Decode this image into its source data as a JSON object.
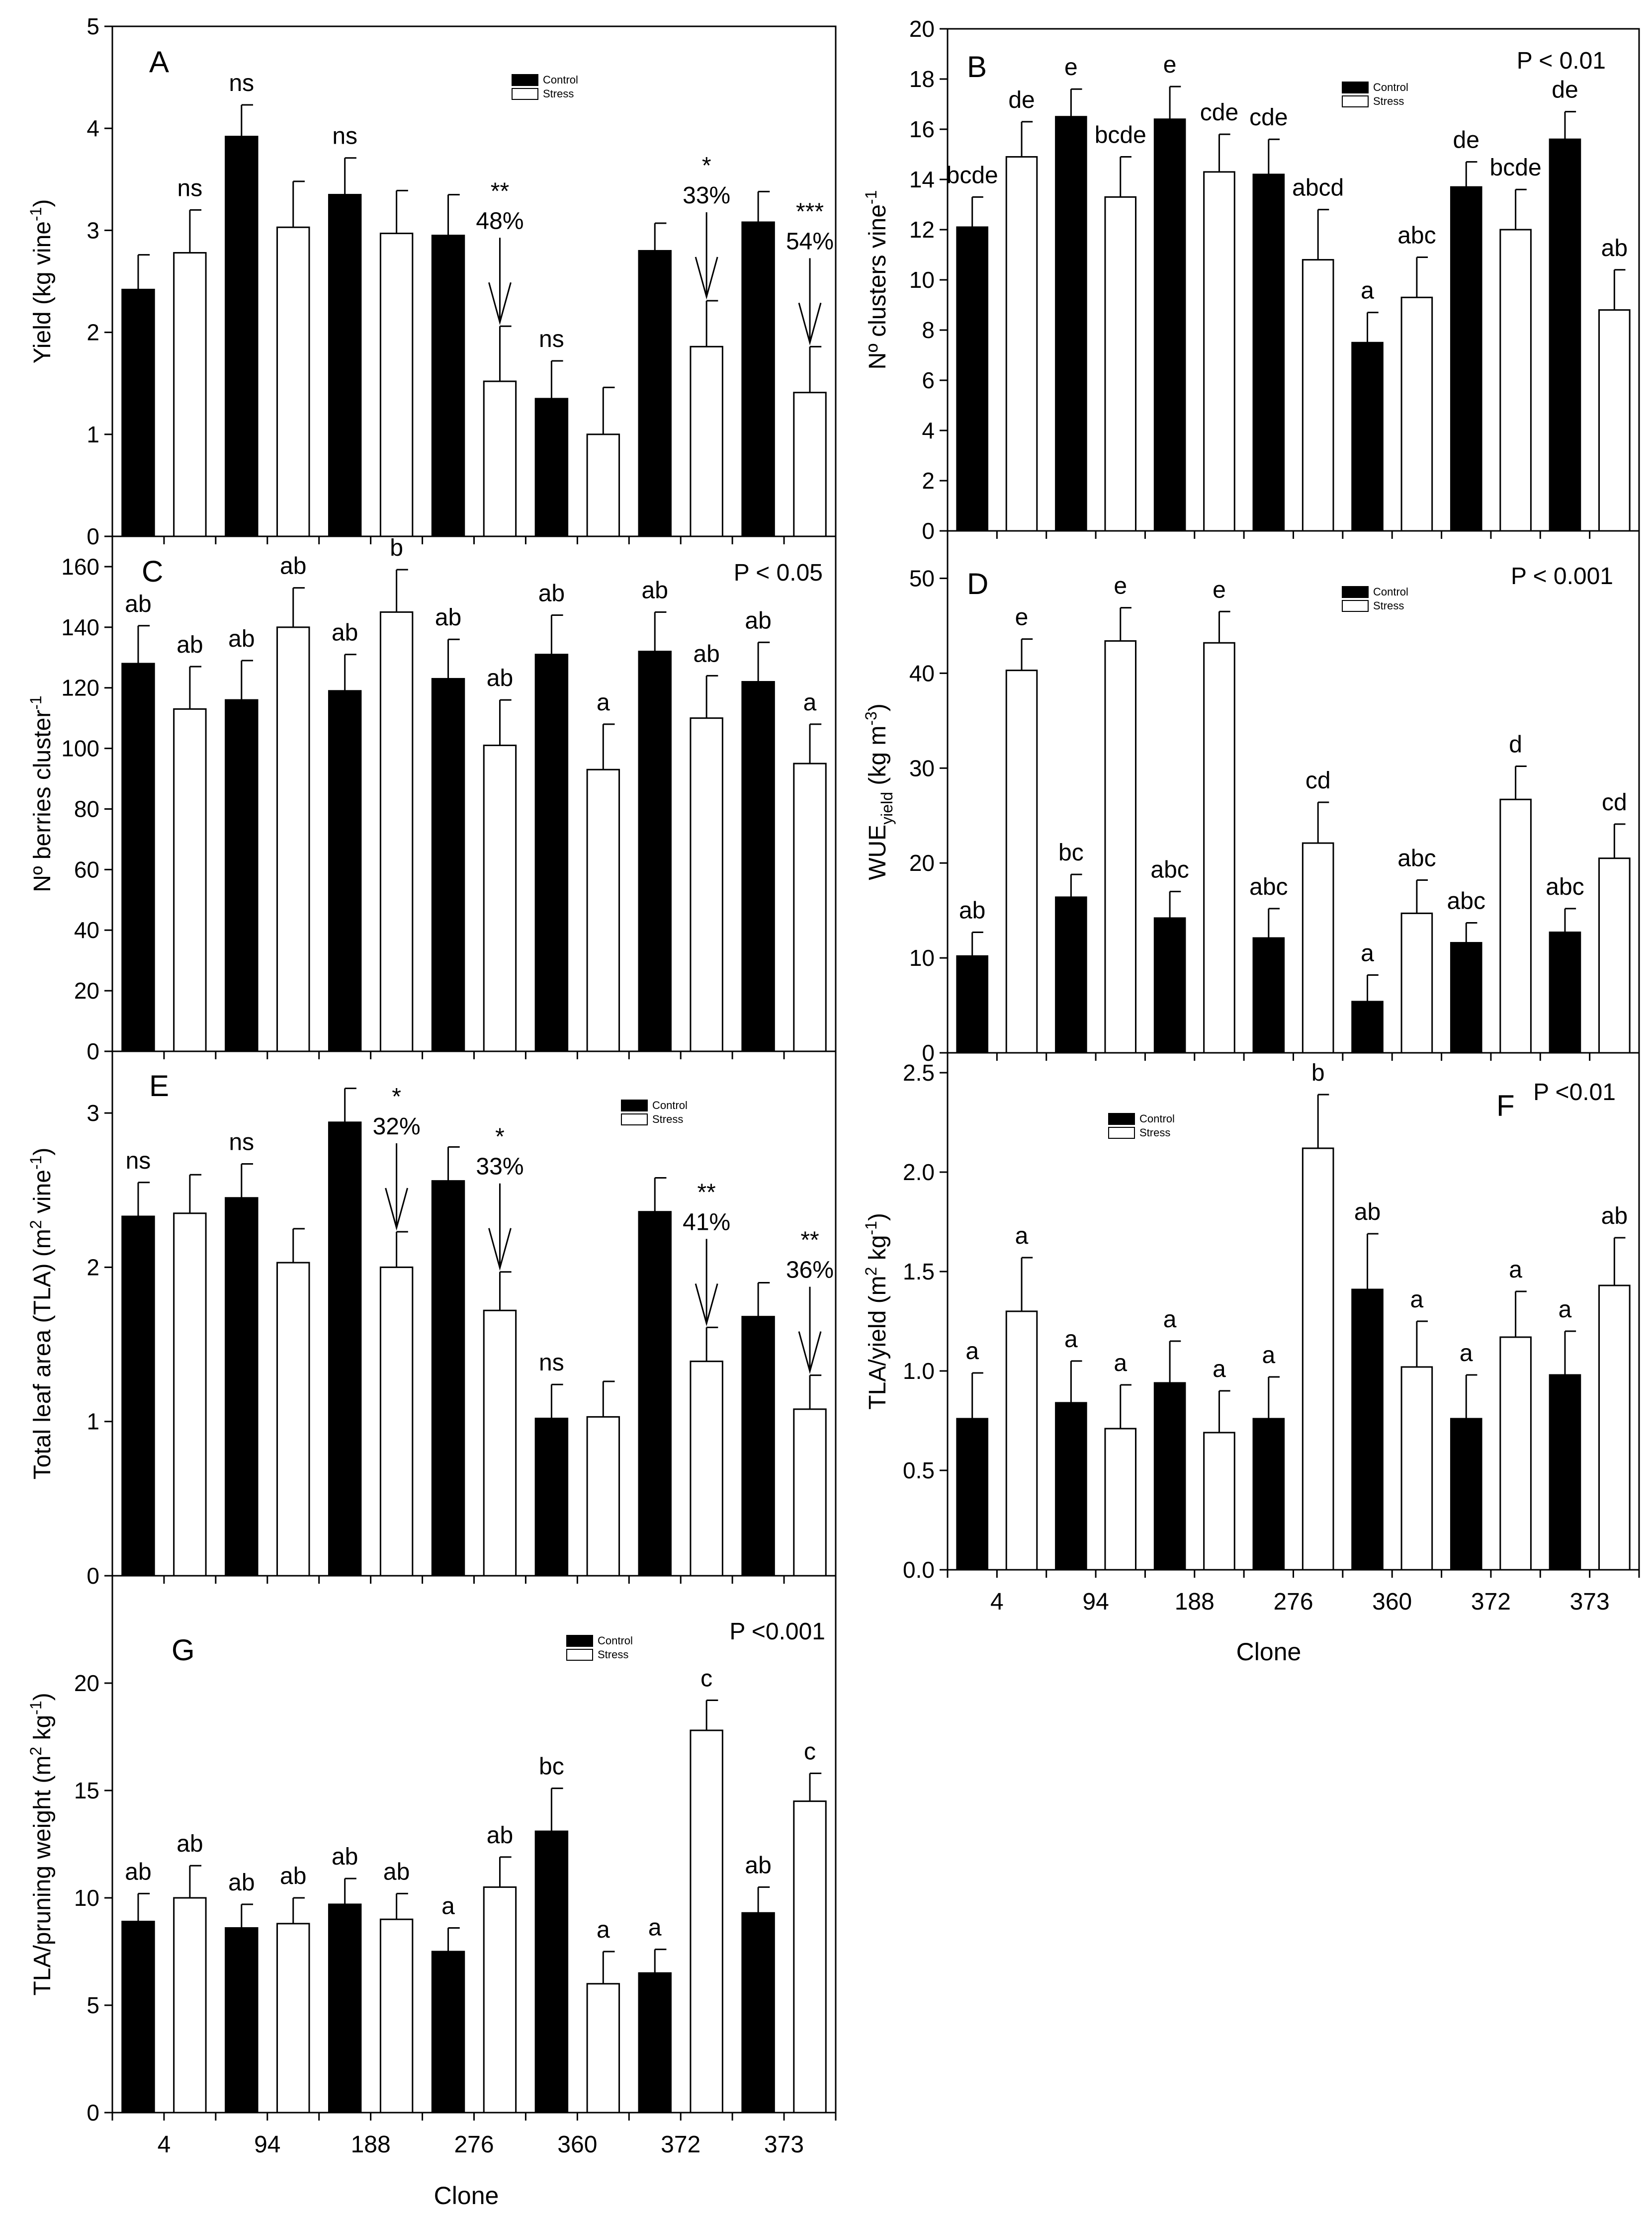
{
  "figure": {
    "x_axis_title": "Clone",
    "legend_labels": [
      "Control",
      "Stress"
    ],
    "colors": {
      "control": "#000000",
      "stress": "#ffffff",
      "axis": "#000000"
    }
  },
  "chart_data": [
    {
      "type": "bar",
      "panel_label": "A",
      "ylabel": "Yield (kg vine-1)",
      "ylabel_main": "Yield (kg vine",
      "ylabel_sup": "-1",
      "ylabel_tail": ")",
      "ylim": [
        0,
        5
      ],
      "yticks": [
        0,
        1,
        2,
        3,
        4,
        5
      ],
      "ytick_labels": [
        "0",
        "1",
        "2",
        "3",
        "4",
        "5"
      ],
      "categories": [
        "4",
        "94",
        "188",
        "276",
        "360",
        "372",
        "373"
      ],
      "series": [
        {
          "name": "Control",
          "values": [
            2.42,
            3.92,
            3.35,
            2.95,
            1.35,
            2.8,
            3.08
          ],
          "errors": [
            0.34,
            0.31,
            0.36,
            0.4,
            0.37,
            0.27,
            0.3
          ]
        },
        {
          "name": "Stress",
          "values": [
            2.78,
            3.03,
            2.97,
            1.52,
            1.0,
            1.86,
            1.41
          ],
          "errors": [
            0.42,
            0.45,
            0.42,
            0.54,
            0.46,
            0.45,
            0.45
          ]
        }
      ],
      "p_value": "",
      "bar_labels": [
        [
          "",
          "ns"
        ],
        [
          "ns",
          ""
        ],
        [
          "ns",
          ""
        ],
        [
          "",
          "**"
        ],
        [
          "ns",
          ""
        ],
        [
          "",
          "*"
        ],
        [
          "",
          "***"
        ]
      ],
      "reductions": [
        {
          "category_index": 3,
          "text": "48%"
        },
        {
          "category_index": 5,
          "text": "33%"
        },
        {
          "category_index": 6,
          "text": "54%"
        }
      ]
    },
    {
      "type": "bar",
      "panel_label": "B",
      "ylabel": "Nº clusters vine-1",
      "ylabel_main": "Nº clusters vine",
      "ylabel_sup": "-1",
      "ylabel_tail": "",
      "ylim": [
        0,
        20
      ],
      "yticks": [
        0,
        2,
        4,
        6,
        8,
        10,
        12,
        14,
        16,
        18,
        20
      ],
      "ytick_labels": [
        "0",
        "2",
        "4",
        "6",
        "8",
        "10",
        "12",
        "14",
        "16",
        "18",
        "20"
      ],
      "categories": [
        "4",
        "94",
        "188",
        "276",
        "360",
        "372",
        "373"
      ],
      "series": [
        {
          "name": "Control",
          "values": [
            12.1,
            16.5,
            16.4,
            14.2,
            7.5,
            13.7,
            15.6
          ],
          "errors": [
            1.2,
            1.1,
            1.3,
            1.4,
            1.2,
            1.0,
            1.1
          ]
        },
        {
          "name": "Stress",
          "values": [
            14.9,
            13.3,
            14.3,
            10.8,
            9.3,
            12.0,
            8.8
          ],
          "errors": [
            1.4,
            1.6,
            1.5,
            2.0,
            1.6,
            1.6,
            1.6
          ]
        }
      ],
      "p_value": "P < 0.01",
      "bar_labels": [
        [
          "bcde",
          "de"
        ],
        [
          "e",
          "bcde"
        ],
        [
          "e",
          "cde"
        ],
        [
          "cde",
          "abcd"
        ],
        [
          "a",
          "abc"
        ],
        [
          "de",
          "bcde"
        ],
        [
          "de",
          "ab"
        ]
      ],
      "reductions": []
    },
    {
      "type": "bar",
      "panel_label": "C",
      "ylabel": "Nº berries cluster-1",
      "ylabel_main": "Nº berries cluster",
      "ylabel_sup": "-1",
      "ylabel_tail": "",
      "ylim": [
        0,
        170
      ],
      "yticks": [
        0,
        20,
        40,
        60,
        80,
        100,
        120,
        140,
        160
      ],
      "ytick_labels": [
        "0",
        "20",
        "40",
        "60",
        "80",
        "100",
        "120",
        "140",
        "160"
      ],
      "categories": [
        "4",
        "94",
        "188",
        "276",
        "360",
        "372",
        "373"
      ],
      "series": [
        {
          "name": "Control",
          "values": [
            128,
            116,
            119,
            123,
            131,
            132,
            122
          ],
          "errors": [
            12.5,
            13,
            12,
            13,
            13,
            13,
            13
          ]
        },
        {
          "name": "Stress",
          "values": [
            113,
            140,
            145,
            101,
            93,
            110,
            95
          ],
          "errors": [
            14,
            13,
            14,
            15,
            15,
            14,
            13
          ]
        }
      ],
      "p_value": "P < 0.05",
      "bar_labels": [
        [
          "ab",
          "ab"
        ],
        [
          "ab",
          "ab"
        ],
        [
          "ab",
          "b"
        ],
        [
          "ab",
          "ab"
        ],
        [
          "ab",
          "a"
        ],
        [
          "ab",
          "ab"
        ],
        [
          "ab",
          "a"
        ]
      ],
      "reductions": []
    },
    {
      "type": "bar",
      "panel_label": "D",
      "ylabel": "WUEyield (kg m-3)",
      "ylabel_main": "WUE",
      "ylabel_sub": "yield",
      "ylabel_mid": " (kg m",
      "ylabel_sup": "-3",
      "ylabel_tail": ")",
      "ylim": [
        0,
        55
      ],
      "yticks": [
        0,
        10,
        20,
        30,
        40,
        50
      ],
      "ytick_labels": [
        "0",
        "10",
        "20",
        "30",
        "40",
        "50"
      ],
      "categories": [
        "4",
        "94",
        "188",
        "276",
        "360",
        "372",
        "373"
      ],
      "series": [
        {
          "name": "Control",
          "values": [
            10.2,
            16.4,
            14.2,
            12.1,
            5.4,
            11.6,
            12.7
          ],
          "errors": [
            2.5,
            2.4,
            2.8,
            3.1,
            2.8,
            2.1,
            2.5
          ]
        },
        {
          "name": "Stress",
          "values": [
            40.3,
            43.4,
            43.2,
            22.1,
            14.7,
            26.7,
            20.5
          ],
          "errors": [
            3.3,
            3.5,
            3.3,
            4.3,
            3.5,
            3.5,
            3.6
          ]
        }
      ],
      "p_value": "P < 0.001",
      "bar_labels": [
        [
          "ab",
          "e"
        ],
        [
          "bc",
          "e"
        ],
        [
          "abc",
          "e"
        ],
        [
          "abc",
          "cd"
        ],
        [
          "a",
          "abc"
        ],
        [
          "abc",
          "d"
        ],
        [
          "abc",
          "cd"
        ]
      ],
      "reductions": []
    },
    {
      "type": "bar",
      "panel_label": "E",
      "ylabel": "Total leaf area (TLA) (m2 vine-1)",
      "ylabel_main": "Total leaf area (TLA) (m",
      "ylabel_sup": "2",
      "ylabel_mid": " vine",
      "ylabel_sup2": "-1",
      "ylabel_tail": ")",
      "ylim": [
        0,
        3.4
      ],
      "yticks": [
        0,
        1,
        2,
        3
      ],
      "ytick_labels": [
        "0",
        "1",
        "2",
        "3"
      ],
      "categories": [
        "4",
        "94",
        "188",
        "276",
        "360",
        "372",
        "373"
      ],
      "series": [
        {
          "name": "Control",
          "values": [
            2.33,
            2.45,
            2.94,
            2.56,
            1.02,
            2.36,
            1.68
          ],
          "errors": [
            0.22,
            0.22,
            0.22,
            0.22,
            0.22,
            0.22,
            0.22
          ]
        },
        {
          "name": "Stress",
          "values": [
            2.35,
            2.03,
            2.0,
            1.72,
            1.03,
            1.39,
            1.08
          ],
          "errors": [
            0.25,
            0.22,
            0.23,
            0.25,
            0.23,
            0.22,
            0.22
          ]
        }
      ],
      "p_value": "",
      "bar_labels": [
        [
          "ns",
          ""
        ],
        [
          "ns",
          ""
        ],
        [
          "",
          "*"
        ],
        [
          "",
          "*"
        ],
        [
          "ns",
          ""
        ],
        [
          "",
          "**"
        ],
        [
          "",
          "**"
        ]
      ],
      "reductions": [
        {
          "category_index": 2,
          "text": "32%"
        },
        {
          "category_index": 3,
          "text": "33%"
        },
        {
          "category_index": 5,
          "text": "41%"
        },
        {
          "category_index": 6,
          "text": "36%"
        }
      ]
    },
    {
      "type": "bar",
      "panel_label": "F",
      "ylabel": "TLA/yield (m2 kg-1)",
      "ylabel_main": "TLA/yield (m",
      "ylabel_sup": "2",
      "ylabel_mid": " kg",
      "ylabel_sup2": "-1",
      "ylabel_tail": ")",
      "ylim": [
        0,
        2.6
      ],
      "yticks": [
        0,
        0.5,
        1.0,
        1.5,
        2.0,
        2.5
      ],
      "ytick_labels": [
        "0.0",
        "0.5",
        "1.0",
        "1.5",
        "2.0",
        "2.5"
      ],
      "categories": [
        "4",
        "94",
        "188",
        "276",
        "360",
        "372",
        "373"
      ],
      "series": [
        {
          "name": "Control",
          "values": [
            0.76,
            0.84,
            0.94,
            0.76,
            1.41,
            0.76,
            0.98
          ],
          "errors": [
            0.23,
            0.21,
            0.21,
            0.21,
            0.28,
            0.22,
            0.22
          ]
        },
        {
          "name": "Stress",
          "values": [
            1.3,
            0.71,
            0.69,
            2.12,
            1.02,
            1.17,
            1.43
          ],
          "errors": [
            0.27,
            0.22,
            0.21,
            0.27,
            0.23,
            0.23,
            0.24
          ]
        }
      ],
      "p_value": "P <0.01",
      "bar_labels": [
        [
          "a",
          "a"
        ],
        [
          "a",
          "a"
        ],
        [
          "a",
          "a"
        ],
        [
          "a",
          "b"
        ],
        [
          "ab",
          "a"
        ],
        [
          "a",
          "a"
        ],
        [
          "a",
          "ab"
        ]
      ],
      "reductions": []
    },
    {
      "type": "bar",
      "panel_label": "G",
      "ylabel": "TLA/pruning weight (m2 kg-1)",
      "ylabel_main": "TLA/pruning weight (m",
      "ylabel_sup": "2",
      "ylabel_mid": " kg",
      "ylabel_sup2": "-1",
      "ylabel_tail": ")",
      "ylim": [
        0,
        25
      ],
      "yticks": [
        0,
        5,
        10,
        15,
        20
      ],
      "ytick_labels": [
        "0",
        "5",
        "10",
        "15",
        "20"
      ],
      "categories": [
        "4",
        "94",
        "188",
        "276",
        "360",
        "372",
        "373"
      ],
      "series": [
        {
          "name": "Control",
          "values": [
            8.9,
            8.6,
            9.7,
            7.5,
            13.1,
            6.5,
            9.3
          ],
          "errors": [
            1.3,
            1.1,
            1.2,
            1.1,
            2.0,
            1.1,
            1.2
          ]
        },
        {
          "name": "Stress",
          "values": [
            10.0,
            8.8,
            9.0,
            10.5,
            6.0,
            17.8,
            14.5
          ],
          "errors": [
            1.5,
            1.2,
            1.2,
            1.4,
            1.5,
            1.4,
            1.3
          ]
        }
      ],
      "p_value": "P <0.001",
      "bar_labels": [
        [
          "ab",
          "ab"
        ],
        [
          "ab",
          "ab"
        ],
        [
          "ab",
          "ab"
        ],
        [
          "a",
          "ab"
        ],
        [
          "bc",
          "a"
        ],
        [
          "a",
          "c"
        ],
        [
          "ab",
          "c"
        ]
      ],
      "reductions": []
    }
  ]
}
